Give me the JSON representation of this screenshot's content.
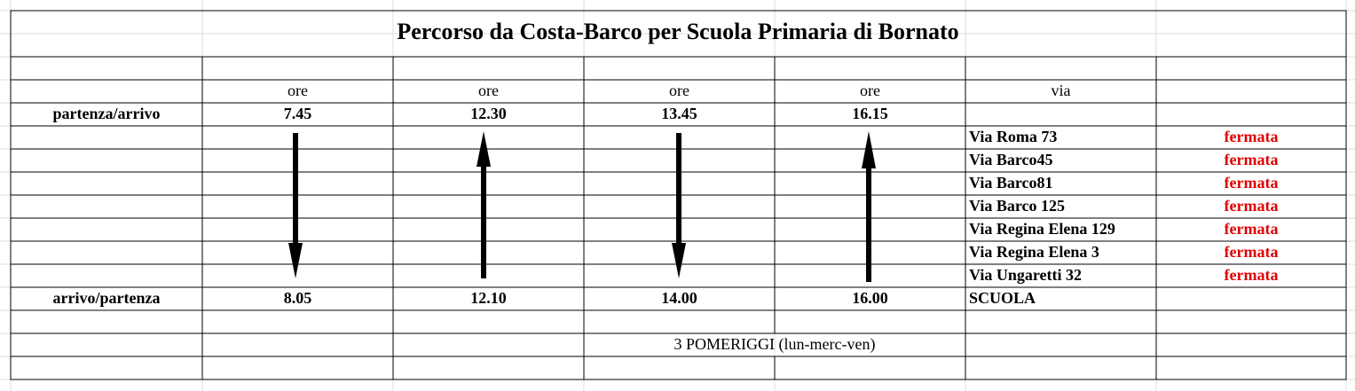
{
  "title": "Percorso da Costa-Barco per Scuola Primaria di Bornato",
  "header": {
    "time_labels": [
      "ore",
      "ore",
      "ore",
      "ore"
    ],
    "via_label": "via"
  },
  "departure": {
    "label": "partenza/arrivo",
    "times": [
      "7.45",
      "12.30",
      "13.45",
      "16.15"
    ]
  },
  "stops": [
    {
      "street": "Via Roma 73",
      "status": "fermata"
    },
    {
      "street": "Via Barco45",
      "status": "fermata"
    },
    {
      "street": "Via Barco81",
      "status": "fermata"
    },
    {
      "street": "Via Barco 125",
      "status": "fermata"
    },
    {
      "street": "Via Regina Elena 129",
      "status": "fermata"
    },
    {
      "street": "Via Regina Elena 3",
      "status": "fermata"
    },
    {
      "street": "Via Ungaretti 32",
      "status": "fermata"
    }
  ],
  "arrival": {
    "label": "arrivo/partenza",
    "times": [
      "8.05",
      "12.10",
      "14.00",
      "16.00"
    ],
    "place": "SCUOLA"
  },
  "note": "3 POMERIGGI (lun-merc-ven)"
}
